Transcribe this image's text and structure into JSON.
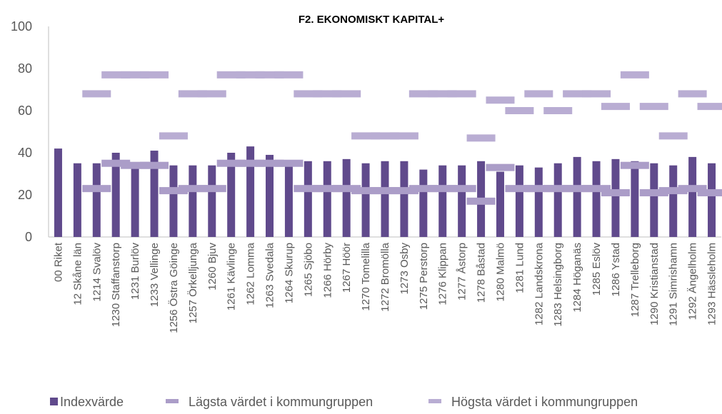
{
  "chart_data": {
    "type": "bar",
    "title": "F2. EKONOMISKT KAPITAL+",
    "categories": [
      "00 Riket",
      "12 Skåne län",
      "1214 Svalöv",
      "1230 Staffanstorp",
      "1231 Burlöv",
      "1233 Vellinge",
      "1256 Östra Göinge",
      "1257 Örkelljunga",
      "1260 Bjuv",
      "1261 Kävlinge",
      "1262 Lomma",
      "1263 Svedala",
      "1264 Skurup",
      "1265 Sjöbo",
      "1266 Hörby",
      "1267 Höör",
      "1270 Tomelilla",
      "1272 Bromölla",
      "1273 Osby",
      "1275 Perstorp",
      "1276 Klippan",
      "1277 Åstorp",
      "1278 Båstad",
      "1280 Malmö",
      "1281 Lund",
      "1282 Landskrona",
      "1283 Helsingborg",
      "1284 Höganäs",
      "1285 Eslöv",
      "1286 Ystad",
      "1287 Trelleborg",
      "1290 Kristianstad",
      "1291 Simrishamn",
      "1292 Ängelholm",
      "1293 Hässleholm"
    ],
    "series": [
      {
        "name": "Indexvärde",
        "color": "#604a8c",
        "values": [
          42,
          35,
          35,
          40,
          33,
          41,
          34,
          34,
          34,
          40,
          43,
          39,
          36,
          36,
          36,
          37,
          35,
          36,
          36,
          32,
          34,
          34,
          36,
          31,
          34,
          33,
          35,
          38,
          36,
          37,
          36,
          35,
          34,
          38,
          35
        ]
      },
      {
        "name": "Lägsta värdet i kommungruppen",
        "color": "#ab9dc8",
        "values": [
          null,
          null,
          23,
          35,
          34,
          34,
          22,
          23,
          23,
          35,
          35,
          35,
          35,
          23,
          23,
          23,
          22,
          22,
          22,
          23,
          23,
          23,
          17,
          33,
          23,
          23,
          23,
          23,
          23,
          21,
          34,
          21,
          22,
          23,
          21
        ]
      },
      {
        "name": "Högsta värdet i kommungruppen",
        "color": "#b9add3",
        "values": [
          null,
          null,
          68,
          77,
          77,
          77,
          48,
          68,
          68,
          77,
          77,
          77,
          77,
          68,
          68,
          68,
          48,
          48,
          48,
          68,
          68,
          68,
          47,
          65,
          60,
          68,
          60,
          68,
          68,
          62,
          77,
          62,
          48,
          68,
          62
        ]
      }
    ],
    "ylim": [
      0,
      100
    ],
    "yticks": [
      0,
      20,
      40,
      60,
      80,
      100
    ]
  }
}
